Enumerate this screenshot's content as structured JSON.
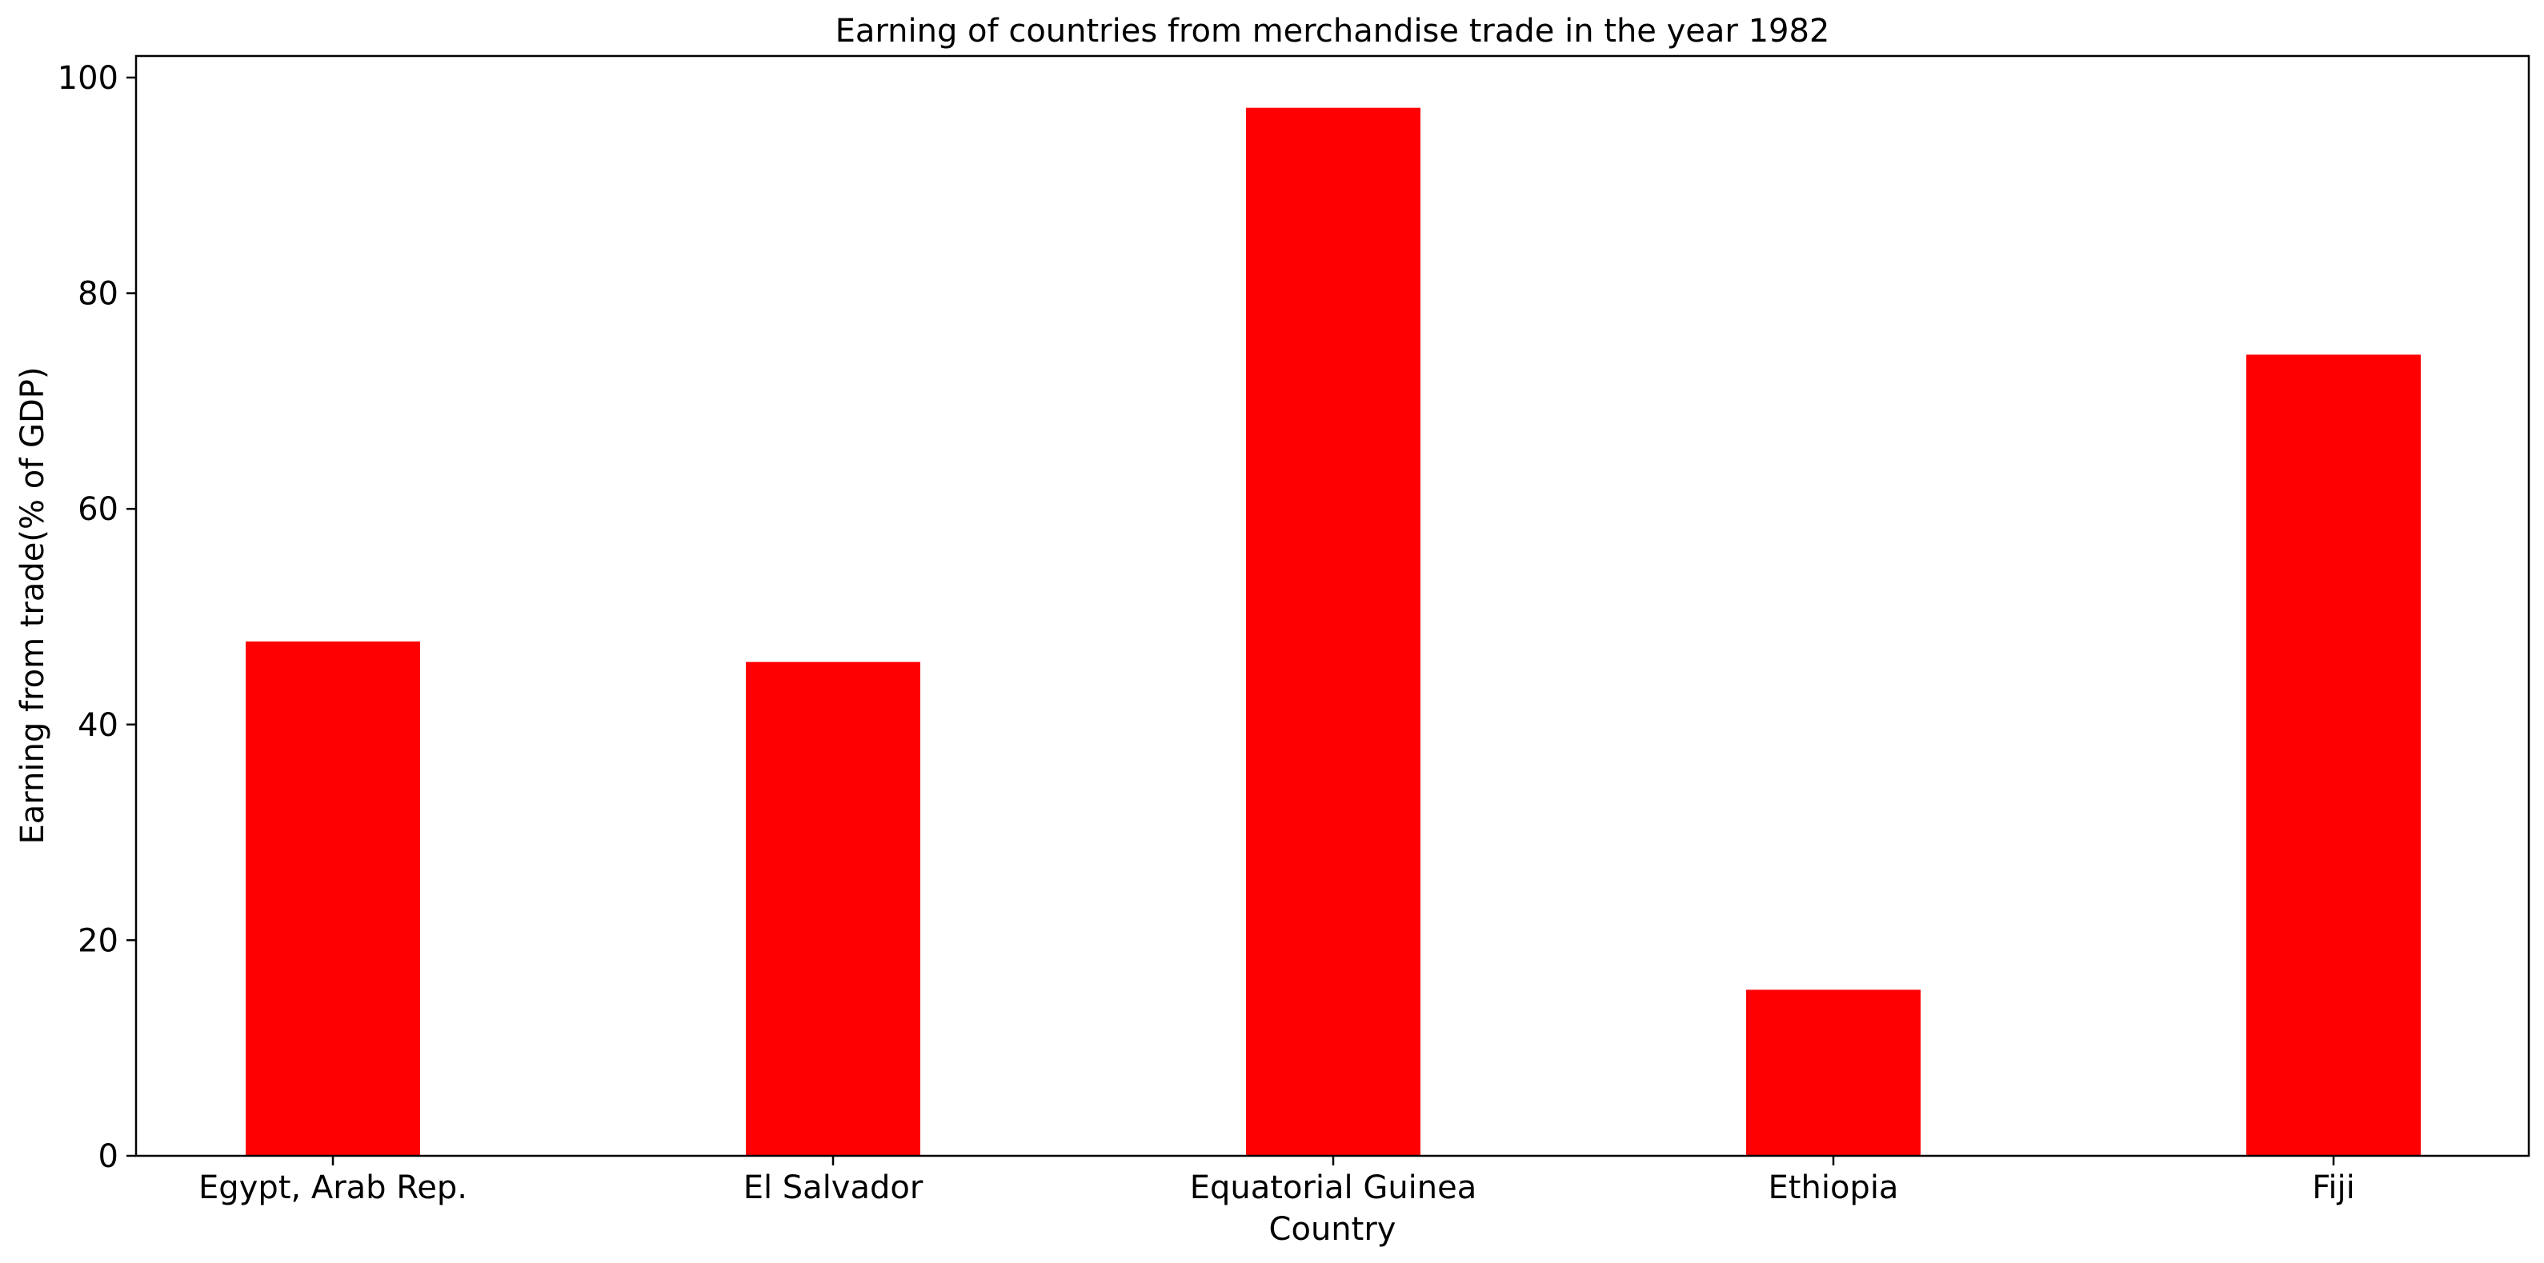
{
  "chart_data": {
    "type": "bar",
    "title": "Earning of countries from merchandise trade in the year 1982",
    "xlabel": "Country",
    "ylabel": "Earning from trade(% of GDP)",
    "categories": [
      "Egypt, Arab Rep.",
      "El Salvador",
      "Equatorial Guinea",
      "Ethiopia",
      "Fiji"
    ],
    "values": [
      47.7,
      45.8,
      97.2,
      15.4,
      74.3
    ],
    "ylim": [
      0,
      102
    ],
    "yticks": [
      0,
      20,
      40,
      60,
      80,
      100
    ],
    "ytick_labels": [
      "0",
      "20",
      "40",
      "60",
      "80",
      "100"
    ],
    "grid": false,
    "bar_color": "#ff0000"
  }
}
